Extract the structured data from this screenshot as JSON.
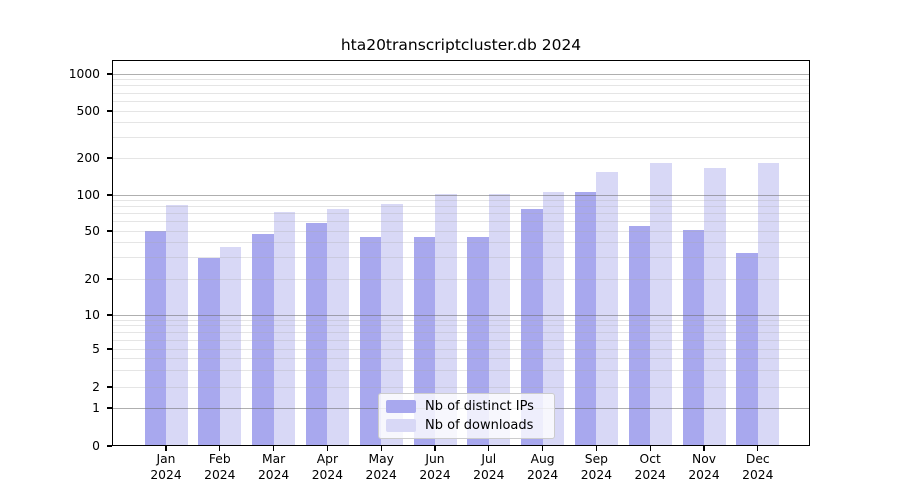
{
  "title": "hta20transcriptcluster.db 2024",
  "colors": {
    "distinct_ips": "#a8a8ee",
    "downloads": "#d8d8f6",
    "grid_major": "#b0b0b0",
    "grid_minor": "#e4e4e4",
    "axis": "#000000",
    "legend_border": "#cccccc"
  },
  "legend": {
    "items": [
      {
        "label": "Nb of distinct IPs",
        "series": "distinct_ips"
      },
      {
        "label": "Nb of downloads",
        "series": "downloads"
      }
    ]
  },
  "chart_data": {
    "type": "bar",
    "title": "hta20transcriptcluster.db 2024",
    "categories": [
      {
        "month": "Jan",
        "year": "2024"
      },
      {
        "month": "Feb",
        "year": "2024"
      },
      {
        "month": "Mar",
        "year": "2024"
      },
      {
        "month": "Apr",
        "year": "2024"
      },
      {
        "month": "May",
        "year": "2024"
      },
      {
        "month": "Jun",
        "year": "2024"
      },
      {
        "month": "Jul",
        "year": "2024"
      },
      {
        "month": "Aug",
        "year": "2024"
      },
      {
        "month": "Sep",
        "year": "2024"
      },
      {
        "month": "Oct",
        "year": "2024"
      },
      {
        "month": "Nov",
        "year": "2024"
      },
      {
        "month": "Dec",
        "year": "2024"
      }
    ],
    "series": [
      {
        "name": "Nb of distinct IPs",
        "color": "#a8a8ee",
        "values": [
          50,
          30,
          47,
          58,
          45,
          45,
          45,
          76,
          105,
          55,
          51,
          33
        ]
      },
      {
        "name": "Nb of downloads",
        "color": "#d8d8f6",
        "values": [
          83,
          37,
          72,
          77,
          84,
          101,
          101,
          105,
          155,
          183,
          166,
          183
        ]
      }
    ],
    "xlabel": "",
    "ylabel": "",
    "yscale": "asinh-log",
    "yticks": [
      0,
      1,
      2,
      5,
      10,
      20,
      50,
      100,
      200,
      500,
      1000
    ],
    "yticks_minor": [
      2,
      3,
      4,
      5,
      6,
      7,
      8,
      9,
      20,
      30,
      40,
      50,
      60,
      70,
      80,
      90,
      200,
      300,
      400,
      500,
      600,
      700,
      800,
      900
    ],
    "yticks_major_grid": [
      1,
      10,
      100,
      1000
    ],
    "ylim": [
      0,
      1280
    ],
    "grid": true,
    "legend_position": "lower center"
  }
}
